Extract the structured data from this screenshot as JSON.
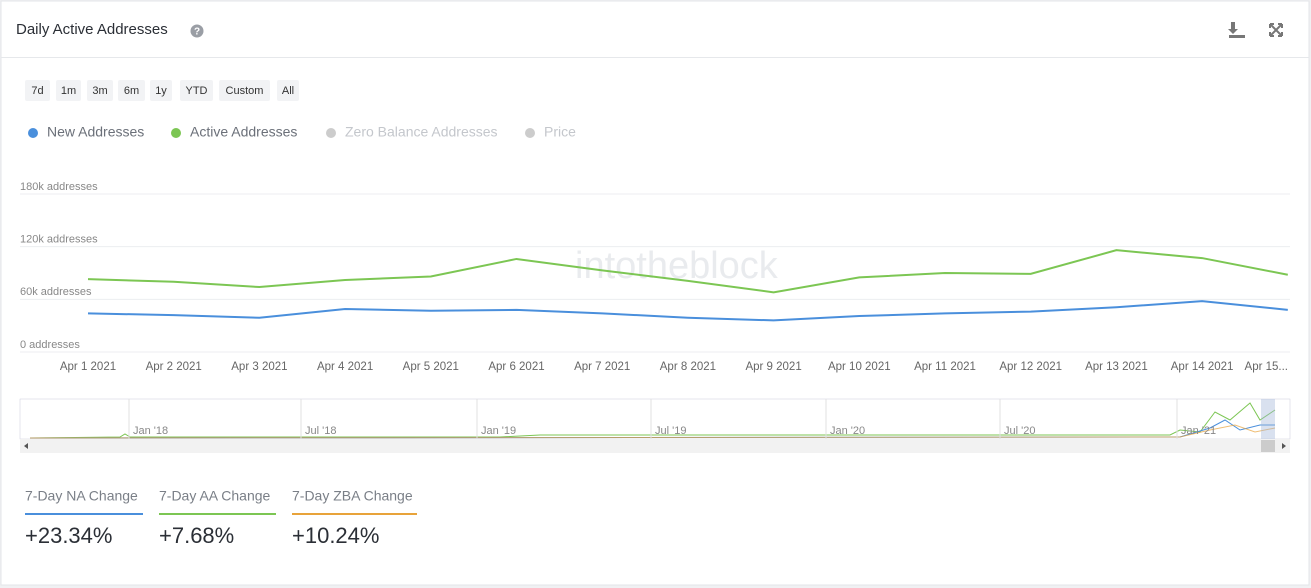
{
  "header": {
    "title": "Daily Active Addresses"
  },
  "range_buttons": [
    "7d",
    "1m",
    "3m",
    "6m",
    "1y",
    "YTD",
    "Custom",
    "All"
  ],
  "watermark": "intotheblock",
  "chart_data": {
    "type": "line",
    "categories": [
      "Apr 1 2021",
      "Apr 2 2021",
      "Apr 3 2021",
      "Apr 4 2021",
      "Apr 5 2021",
      "Apr 6 2021",
      "Apr 7 2021",
      "Apr 8 2021",
      "Apr 9 2021",
      "Apr 10 2021",
      "Apr 11 2021",
      "Apr 12 2021",
      "Apr 13 2021",
      "Apr 14 2021",
      "Apr 15..."
    ],
    "series": [
      {
        "name": "New Addresses",
        "color": "#4a8fdc",
        "values": [
          44000,
          42000,
          39000,
          49000,
          47000,
          48000,
          44000,
          39000,
          36000,
          41000,
          44000,
          46000,
          51000,
          58000,
          48000
        ]
      },
      {
        "name": "Active Addresses",
        "color": "#7cc653",
        "values": [
          83000,
          80000,
          74000,
          82000,
          86000,
          106000,
          93000,
          81000,
          68000,
          85000,
          90000,
          89000,
          116000,
          107000,
          88000
        ]
      }
    ],
    "hidden_series": [
      {
        "name": "Zero Balance Addresses",
        "color": "#cccccc"
      },
      {
        "name": "Price",
        "color": "#cccccc"
      }
    ],
    "ylim": [
      0,
      180000
    ],
    "yticks": [
      {
        "value": 0,
        "label": "0 addresses"
      },
      {
        "value": 60000,
        "label": "60k addresses"
      },
      {
        "value": 120000,
        "label": "120k addresses"
      },
      {
        "value": 180000,
        "label": "180k addresses"
      }
    ],
    "grid": true
  },
  "navigator": {
    "labels": [
      "Jan '18",
      "Jul '18",
      "Jan '19",
      "Jul '19",
      "Jan '20",
      "Jul '20",
      "Jan '21"
    ]
  },
  "stats": [
    {
      "label": "7-Day NA Change",
      "value": "+23.34%",
      "color": "#4a8fdc"
    },
    {
      "label": "7-Day AA Change",
      "value": "+7.68%",
      "color": "#7cc653"
    },
    {
      "label": "7-Day ZBA Change",
      "value": "+10.24%",
      "color": "#e8a33a"
    }
  ]
}
